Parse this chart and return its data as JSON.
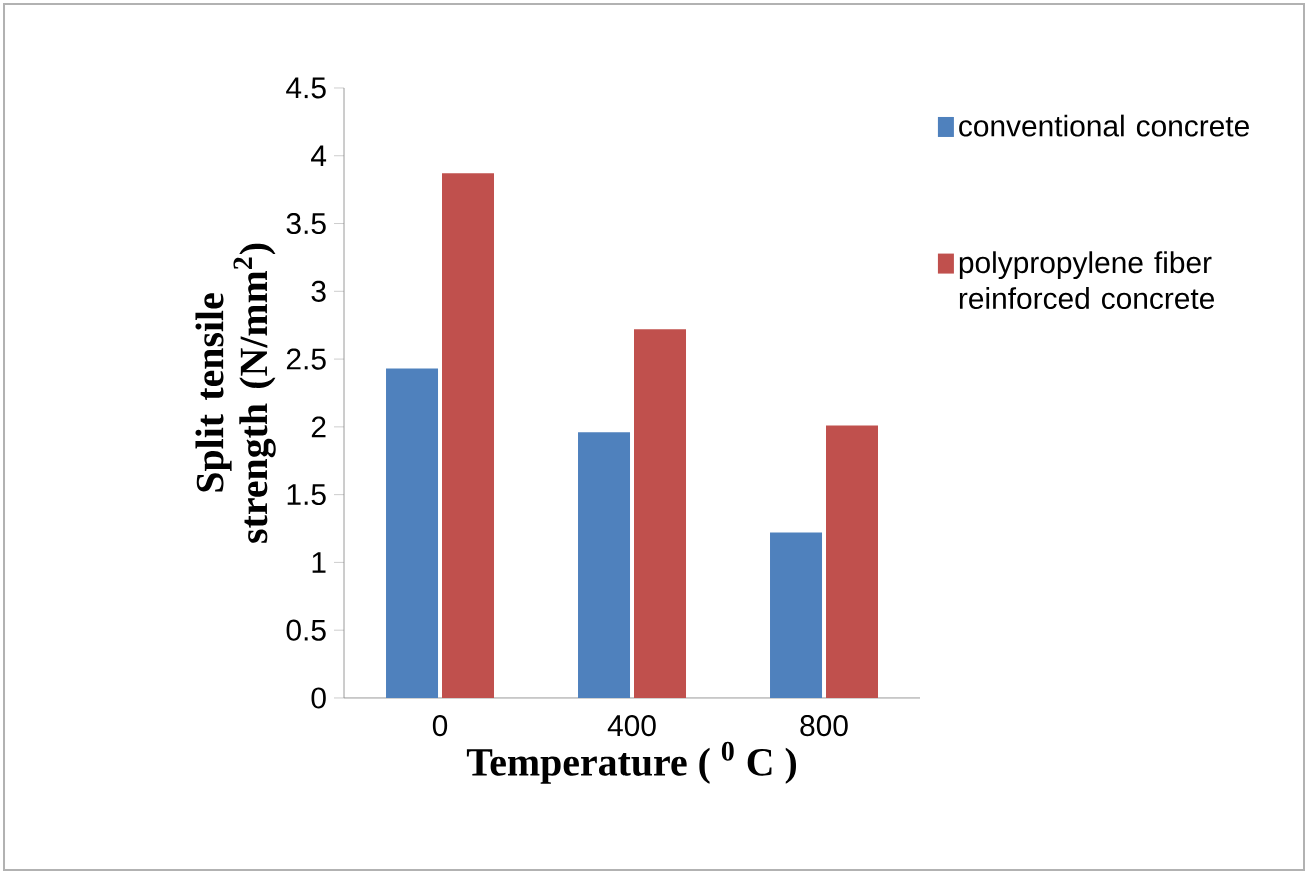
{
  "chart_data": {
    "type": "bar",
    "xlabel": "Temperature ( $^{0}$ C )",
    "ylabel": "Split tensile strength (N/mm$^{2}$)",
    "categories": [
      "0",
      "400",
      "800"
    ],
    "series": [
      {
        "name": "conventional concrete",
        "color": "#4f81bd",
        "values": [
          2.43,
          1.96,
          1.22
        ]
      },
      {
        "name": "polypropylene fiber reinforced concrete",
        "color": "#c0504d",
        "values": [
          3.87,
          2.72,
          2.01
        ]
      }
    ],
    "ylim": [
      0,
      4.5
    ],
    "yticks": [
      0,
      0.5,
      1,
      1.5,
      2,
      2.5,
      3,
      3.5,
      4,
      4.5
    ],
    "grid": false,
    "legend": "right"
  }
}
